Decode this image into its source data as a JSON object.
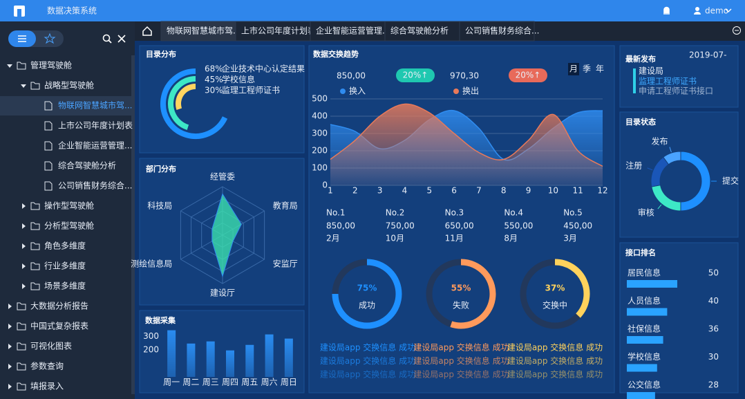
{
  "header": {
    "title": "数据决策系统",
    "user": "demo"
  },
  "sidebar": {
    "tree": [
      {
        "label": "管理驾驶舱",
        "children": [
          {
            "label": "战略型驾驶舱",
            "children": [
              {
                "label": "物联网智慧城市驾...",
                "active": true
              },
              {
                "label": "上市公司年度计划表"
              },
              {
                "label": "企业智能运营管理..."
              },
              {
                "label": "综合驾驶舱分析"
              },
              {
                "label": "公司销售财务综合..."
              }
            ]
          },
          {
            "label": "操作型驾驶舱"
          },
          {
            "label": "分析型驾驶舱"
          },
          {
            "label": "角色多维度"
          },
          {
            "label": "行业多维度"
          },
          {
            "label": "场景多维度"
          }
        ]
      },
      {
        "label": "大数据分析报告"
      },
      {
        "label": "中国式复杂报表"
      },
      {
        "label": "可视化图表"
      },
      {
        "label": "参数查询"
      },
      {
        "label": "填报录入"
      }
    ]
  },
  "tabs": {
    "items": [
      "物联网智慧城市驾...",
      "上市公司年度计划表",
      "企业智能运营管理...",
      "综合驾驶舱分析",
      "公司销售财务综合..."
    ],
    "active": 0
  },
  "exchange": {
    "in_total": "850,00",
    "in_change": "20%↑",
    "out_total": "970,30",
    "out_change": "20%↑",
    "periods": [
      "月",
      "季",
      "年"
    ],
    "ranking": [
      {
        "rank": "No.1",
        "value": "850,00",
        "month": "2月"
      },
      {
        "rank": "No.2",
        "value": "750,00",
        "month": "10月"
      },
      {
        "rank": "No.3",
        "value": "650,00",
        "month": "11月"
      },
      {
        "rank": "No.4",
        "value": "550,00",
        "month": "8月"
      },
      {
        "rank": "No.5",
        "value": "450,00",
        "month": "3月"
      }
    ],
    "messages": [
      [
        "建设局app 交换信息 成功",
        "建设局app 交换信息 成功",
        "建设局app 交换信息 成功"
      ],
      [
        "建设局app 交换信息 成功",
        "建设局app 交换信息 成功",
        "建设局app 交换信息 成功"
      ],
      [
        "建设局app 交换信息 成功",
        "建设局app 交换信息 成功",
        "建设局app 交换信息 成功"
      ]
    ]
  },
  "news": {
    "title": "最新发布",
    "date": "2019-07-",
    "tag": "建设局",
    "headline": "监理工程师证书",
    "subline": "申请工程师证书接口"
  },
  "chart_data": [
    {
      "type": "radial-bar",
      "title": "目录分布",
      "categories": [
        "企业技术中心认定结果",
        "学校信息",
        "监理工程师证书"
      ],
      "values": [
        68,
        45,
        30
      ],
      "value_labels": [
        "68%",
        "45%",
        "30%"
      ],
      "colors": [
        "#1e90ff",
        "#3de8c6",
        "#ffd460"
      ]
    },
    {
      "type": "radar",
      "title": "部门分布",
      "categories": [
        "经管委",
        "教育局",
        "安监厅",
        "建设厅",
        "测绘信息局",
        "科技局"
      ],
      "rlim": [
        0,
        100
      ],
      "values": [
        85,
        45,
        25,
        85,
        25,
        25
      ],
      "color": "#3de8b0"
    },
    {
      "type": "bar",
      "title": "数据采集",
      "categories": [
        "周一",
        "周二",
        "周三",
        "周四",
        "周五",
        "周六",
        "周日"
      ],
      "values": [
        347,
        248,
        264,
        197,
        238,
        316,
        285
      ],
      "color": "#2a8cf0",
      "ylim": [
        0,
        350
      ],
      "yticks": [
        200,
        300
      ]
    },
    {
      "type": "area",
      "title": "数据交换趋势",
      "x": [
        1,
        2,
        3,
        4,
        5,
        6,
        7,
        8,
        9,
        10,
        11,
        12
      ],
      "xlim": [
        1,
        12
      ],
      "xticks": [
        1,
        2,
        3,
        4,
        5,
        6,
        7,
        8,
        9,
        10,
        11,
        12
      ],
      "ylim": [
        0,
        500
      ],
      "yticks": [
        0,
        100,
        200,
        300,
        400,
        500
      ],
      "grid": true,
      "series": [
        {
          "name": "换入",
          "color": "#2f8cf0",
          "values": [
            352,
            312,
            212,
            260,
            380,
            432,
            330,
            150,
            210,
            330,
            420,
            432
          ]
        },
        {
          "name": "换出",
          "color": "#e87a5a",
          "values": [
            150,
            260,
            400,
            470,
            420,
            300,
            190,
            150,
            260,
            410,
            200,
            110
          ]
        }
      ]
    },
    {
      "type": "gauge",
      "categories": [
        "成功",
        "失败",
        "交换中"
      ],
      "values": [
        75,
        55,
        37
      ],
      "value_labels": [
        "75%",
        "55%",
        "37%"
      ],
      "colors": [
        "#1e90ff",
        "#ff9a5c",
        "#ffd25c"
      ]
    },
    {
      "type": "donut",
      "title": "目录状态",
      "categories": [
        "提交",
        "审核",
        "注册",
        "发布"
      ],
      "values": [
        50,
        22,
        18,
        10
      ],
      "colors": [
        "#1e90ff",
        "#3de8c6",
        "#1a56b8",
        "#4aa3ff"
      ]
    },
    {
      "type": "hbar",
      "title": "接口排名",
      "categories": [
        "居民信息",
        "人员信息",
        "社保信息",
        "学校信息",
        "公交信息"
      ],
      "values": [
        50,
        40,
        36,
        30,
        28
      ],
      "color": "#2aa3ff"
    }
  ]
}
